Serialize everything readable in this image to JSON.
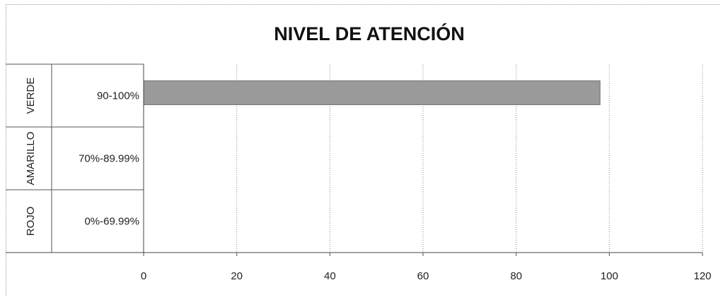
{
  "chart_data": {
    "type": "bar",
    "orientation": "horizontal",
    "title": "NIVEL DE ATENCIÓN",
    "xlabel": "",
    "ylabel": "",
    "xlim": [
      0,
      120
    ],
    "x_ticks": [
      0,
      20,
      40,
      60,
      80,
      100,
      120
    ],
    "grid": true,
    "categories": [
      {
        "group": "VERDE",
        "label": "90-100%"
      },
      {
        "group": "AMARILLO",
        "label": "70%-89.99%"
      },
      {
        "group": "ROJO",
        "label": "0%-69.99%"
      }
    ],
    "values": [
      98,
      0,
      0
    ],
    "bar_color": "#9a9a9a"
  }
}
